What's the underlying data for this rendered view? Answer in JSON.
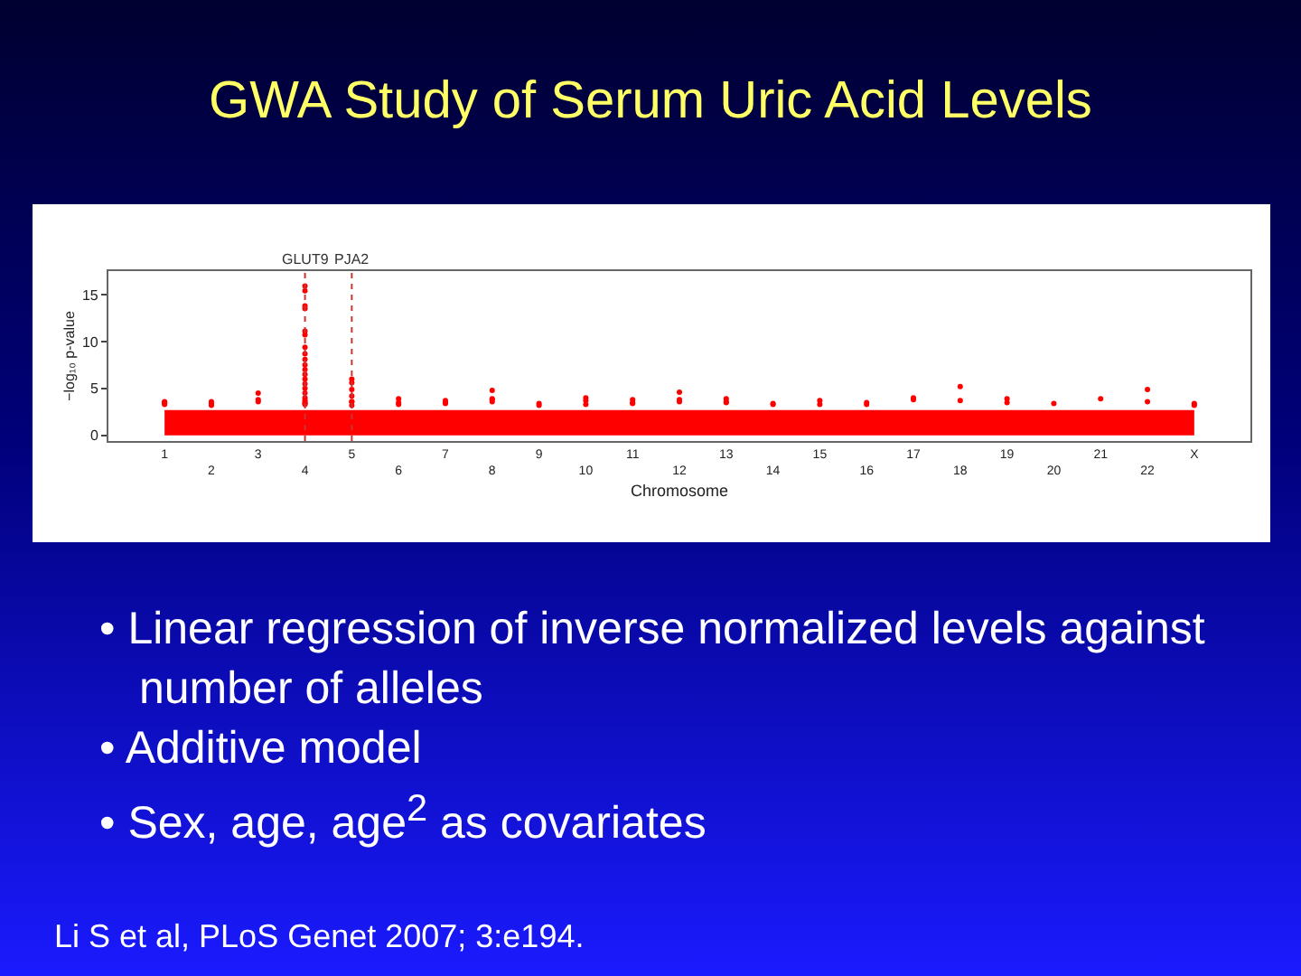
{
  "chart_data": {
    "type": "scatter",
    "title": "GWA Study of Serum Uric Acid Levels",
    "xlabel": "Chromosome",
    "ylabel": "−log₁₀ p-value",
    "annotations": [
      "• Linear regression of inverse normalized levels against number of alleles",
      "• Additive model",
      "• Sex, age, age$^{2}$ as  covariates",
      "Li S et al, PLoS Genet 2007; 3:e194."
    ],
    "categories": [
      "1",
      "2",
      "3",
      "4",
      "5",
      "6",
      "7",
      "8",
      "9",
      "10",
      "11",
      "12",
      "13",
      "14",
      "15",
      "16",
      "17",
      "18",
      "19",
      "20",
      "21",
      "22",
      "X"
    ],
    "ylim": [
      -0.6,
      17.5
    ],
    "yticks": [
      0,
      5,
      10,
      15
    ],
    "grid": false,
    "legend": false,
    "ref_lines": [
      {
        "axis": "x",
        "value": "4",
        "label": "GLUT9",
        "color": "#cc3333",
        "line_style": "dotted"
      },
      {
        "axis": "x",
        "value": "5",
        "label": "PJA2",
        "color": "#cc3333",
        "line_style": "dotted"
      }
    ],
    "series": [
      {
        "type": "area",
        "color": "#ff0000",
        "values": [
          2.6,
          2.6,
          2.6,
          2.6,
          2.6,
          2.6,
          2.6,
          2.6,
          2.6,
          2.6,
          2.6,
          2.6,
          2.6,
          2.6,
          2.6,
          2.6,
          2.6,
          2.6,
          2.6,
          2.6,
          2.6,
          2.6,
          2.6
        ]
      },
      {
        "color": "#ff0000",
        "marker": "circle",
        "x": [
          "1",
          "1",
          "1",
          "1",
          "1",
          "2",
          "2",
          "2",
          "2",
          "3",
          "3",
          "3",
          "4",
          "4",
          "4",
          "4",
          "4",
          "4",
          "4",
          "4",
          "4",
          "4",
          "4",
          "4",
          "4",
          "4",
          "4",
          "4",
          "4",
          "4",
          "4",
          "4",
          "4",
          "5",
          "5",
          "5",
          "5",
          "5",
          "5",
          "5",
          "6",
          "6",
          "6",
          "7",
          "7",
          "7",
          "8",
          "8",
          "8",
          "8",
          "9",
          "9",
          "10",
          "10",
          "10",
          "11",
          "11",
          "11",
          "12",
          "12",
          "12",
          "13",
          "13",
          "13",
          "14",
          "14",
          "15",
          "15",
          "16",
          "16",
          "17",
          "17",
          "18",
          "18",
          "19",
          "19",
          "20",
          "21",
          "22",
          "22",
          "X",
          "X",
          "X"
        ],
        "values": [
          3.6,
          3.5,
          3.5,
          3.3,
          3.4,
          3.2,
          3.4,
          3.6,
          3.3,
          3.8,
          4.5,
          3.6,
          3.4,
          3.3,
          3.7,
          15.9,
          15.4,
          13.8,
          13.5,
          11.1,
          10.7,
          9.4,
          8.7,
          8.1,
          7.5,
          7.0,
          6.5,
          6.0,
          5.5,
          5.0,
          4.5,
          4.0,
          3.5,
          3.2,
          3.6,
          6.0,
          5.6,
          4.9,
          4.2,
          3.6,
          3.5,
          3.9,
          3.3,
          3.4,
          3.7,
          3.5,
          3.9,
          4.8,
          3.8,
          3.6,
          3.2,
          3.4,
          3.3,
          4.0,
          3.7,
          3.4,
          3.8,
          3.5,
          3.6,
          3.8,
          4.6,
          3.5,
          3.9,
          3.6,
          3.3,
          3.4,
          3.7,
          3.3,
          3.5,
          3.3,
          3.8,
          4.0,
          3.7,
          5.2,
          3.5,
          3.9,
          3.4,
          3.9,
          4.9,
          3.6,
          3.3,
          3.2,
          3.4
        ]
      }
    ]
  }
}
